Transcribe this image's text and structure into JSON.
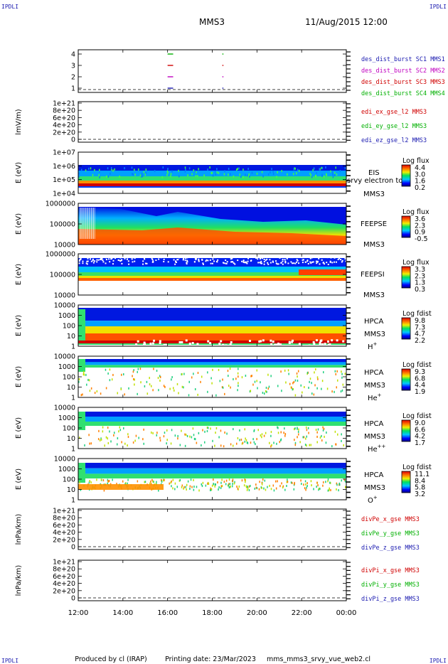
{
  "header": {
    "corner_label": "IPDLI",
    "title": "MMS3",
    "datetime": "11/Aug/2015 12:00"
  },
  "footer": {
    "produced_by": "Produced by cl (IRAP)",
    "printing_date": "Printing date: 23/Mar/2023",
    "filename": "mms_mms3_srvy_vue_web2.cl"
  },
  "colors": {
    "blue": "#1a1ab0",
    "magenta": "#c000c0",
    "red": "#d00000",
    "green": "#00b000"
  },
  "chart_data": {
    "type": "heatmap",
    "x_ticks": [
      "12:00",
      "14:00",
      "16:00",
      "18:00",
      "20:00",
      "22:00",
      "00:00"
    ],
    "panels": [
      {
        "id": "burst",
        "kind": "line",
        "ytick_labels": [
          "4",
          "3",
          "2",
          "1"
        ],
        "legend": [
          {
            "label": "des_dist_burst SC1 MMS1",
            "color": "#1a1ab0"
          },
          {
            "label": "des_dist_burst SC2 MMS2",
            "color": "#c000c0"
          },
          {
            "label": "des_dist_burst SC3 MMS3",
            "color": "#d00000"
          },
          {
            "label": "des_dist_burst SC4 MMS4",
            "color": "#00b000"
          }
        ],
        "marks": [
          {
            "sc": 4,
            "color": "#00b000",
            "x_hours": [
              [
                16.0,
                16.25
              ],
              [
                18.45,
                18.5
              ]
            ]
          },
          {
            "sc": 3,
            "color": "#d00000",
            "x_hours": [
              [
                16.0,
                16.25
              ],
              [
                18.45,
                18.5
              ]
            ]
          },
          {
            "sc": 2,
            "color": "#c000c0",
            "x_hours": [
              [
                16.0,
                16.25
              ],
              [
                18.45,
                18.5
              ]
            ]
          },
          {
            "sc": 1,
            "color": "#1a1ab0",
            "x_hours": [
              [
                16.0,
                16.25
              ],
              [
                18.45,
                18.5
              ]
            ]
          }
        ]
      },
      {
        "id": "edi",
        "kind": "line",
        "ylabel": "lmV/m)",
        "ytick_labels": [
          "1e+21",
          "8e+20",
          "6e+20",
          "4e+20",
          "2e+20",
          "0"
        ],
        "legend": [
          {
            "label": "edi_ex_gse_l2 MMS3",
            "color": "#d00000"
          },
          {
            "label": "edi_ey_gse_l2 MMS3",
            "color": "#00b000"
          },
          {
            "label": "edi_ez_gse_l2 MMS3",
            "color": "#1a1ab0"
          }
        ]
      },
      {
        "id": "eis",
        "kind": "spectrogram",
        "ylabel": "E (eV)",
        "ytick_labels": [
          "1e+07",
          "1e+06",
          "1e+05",
          "1e+04"
        ],
        "side_labels": [
          "EIS",
          "srvy electron to",
          "MMS3"
        ],
        "colorbar_title": "Log flux",
        "colorbar_ticks": [
          "4.4",
          "3.0",
          "1.6",
          "0.2"
        ]
      },
      {
        "id": "feepse",
        "kind": "spectrogram",
        "ylabel": "E (eV)",
        "ytick_labels": [
          "1000000",
          "100000",
          "10000"
        ],
        "side_labels": [
          "FEEPSE",
          "MMS3"
        ],
        "colorbar_title": "Log flux",
        "colorbar_ticks": [
          "3.6",
          "2.3",
          "0.9",
          "-0.5"
        ]
      },
      {
        "id": "feepsi",
        "kind": "spectrogram",
        "ylabel": "E (eV)",
        "ytick_labels": [
          "1000000",
          "100000",
          "10000"
        ],
        "side_labels": [
          "FEEPSI",
          "MMS3"
        ],
        "colorbar_title": "Log flux",
        "colorbar_ticks": [
          "3.3",
          "2.3",
          "1.3",
          "0.3"
        ]
      },
      {
        "id": "hpca_h",
        "kind": "spectrogram",
        "ylabel": "E (eV)",
        "ytick_labels": [
          "10000",
          "1000",
          "100",
          "10",
          "1"
        ],
        "side_labels": [
          "HPCA",
          "MMS3"
        ],
        "species": "H",
        "species_sup": "+",
        "colorbar_title": "Log fdist",
        "colorbar_ticks": [
          "9.8",
          "7.3",
          "4.7",
          "2.2"
        ]
      },
      {
        "id": "hpca_he",
        "kind": "spectrogram",
        "ylabel": "E (eV)",
        "ytick_labels": [
          "10000",
          "1000",
          "100",
          "10",
          "1"
        ],
        "side_labels": [
          "HPCA",
          "MMS3"
        ],
        "species": "He",
        "species_sup": "+",
        "colorbar_title": "Log fdist",
        "colorbar_ticks": [
          "9.3",
          "6.8",
          "4.4",
          "1.9"
        ]
      },
      {
        "id": "hpca_hepp",
        "kind": "spectrogram",
        "ylabel": "E (eV)",
        "ytick_labels": [
          "10000",
          "1000",
          "100",
          "10",
          "1"
        ],
        "side_labels": [
          "HPCA",
          "MMS3"
        ],
        "species": "He",
        "species_sup": "++",
        "colorbar_title": "Log fdist",
        "colorbar_ticks": [
          "9.0",
          "6.6",
          "4.2",
          "1.7"
        ]
      },
      {
        "id": "hpca_o",
        "kind": "spectrogram",
        "ylabel": "E (eV)",
        "ytick_labels": [
          "10000",
          "1000",
          "100",
          "10",
          "1"
        ],
        "side_labels": [
          "HPCA",
          "MMS3"
        ],
        "species": "O",
        "species_sup": "+",
        "colorbar_title": "Log fdist",
        "colorbar_ticks": [
          "11.1",
          "8.4",
          "5.8",
          "3.2"
        ]
      },
      {
        "id": "divpe",
        "kind": "line",
        "ylabel": "lnPa/km)",
        "ytick_labels": [
          "1e+21",
          "8e+20",
          "6e+20",
          "4e+20",
          "2e+20",
          "0"
        ],
        "legend": [
          {
            "label": "divPe_x_gse MMS3",
            "color": "#d00000"
          },
          {
            "label": "divPe_y_gse MMS3",
            "color": "#00b000"
          },
          {
            "label": "divPe_z_gse MMS3",
            "color": "#1a1ab0"
          }
        ]
      },
      {
        "id": "divpi",
        "kind": "line",
        "ylabel": "lnPa/km)",
        "ytick_labels": [
          "1e+21",
          "8e+20",
          "6e+20",
          "4e+20",
          "2e+20",
          "0"
        ],
        "legend": [
          {
            "label": "divPi_x_gse MMS3",
            "color": "#d00000"
          },
          {
            "label": "divPi_y_gse MMS3",
            "color": "#00b000"
          },
          {
            "label": "divPi_z_gse MMS3",
            "color": "#1a1ab0"
          }
        ]
      }
    ]
  }
}
